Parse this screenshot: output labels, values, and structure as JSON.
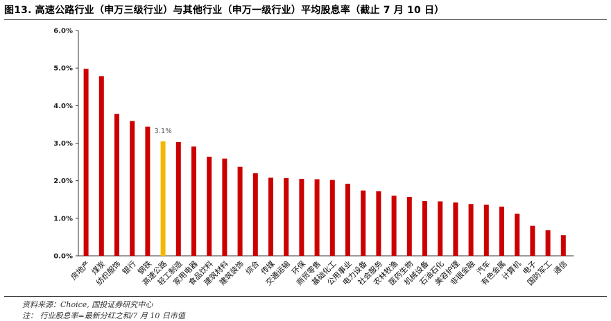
{
  "title": "图13. 高速公路行业（申万三级行业）与其他行业（申万一级行业）平均股息率（截止 7 月 10 日）",
  "source": "资料来源：Choice, 国投证券研究中心",
  "footnote": "注： 行业股息率=最新分红之和/7 月 10 日市值",
  "colors": {
    "bar": "#cc0000",
    "highlight": "#f2b705",
    "axis": "#333333",
    "label": "#595959"
  },
  "chart_data": {
    "type": "bar",
    "categories": [
      "房地产",
      "煤炭",
      "纺织服饰",
      "银行",
      "钢铁",
      "高速公路",
      "轻工制造",
      "家用电器",
      "食品饮料",
      "建筑材料",
      "建筑装饰",
      "综合",
      "传媒",
      "交通运输",
      "环保",
      "商贸零售",
      "基础化工",
      "公用事业",
      "电力设备",
      "社会服务",
      "农林牧渔",
      "医药生物",
      "机械设备",
      "石油石化",
      "美容护理",
      "非银金融",
      "汽车",
      "有色金属",
      "计算机",
      "电子",
      "国防军工",
      "通信"
    ],
    "values": [
      4.98,
      4.78,
      3.78,
      3.59,
      3.44,
      3.05,
      3.03,
      2.91,
      2.64,
      2.59,
      2.37,
      2.2,
      2.08,
      2.07,
      2.05,
      2.04,
      2.02,
      1.92,
      1.74,
      1.72,
      1.6,
      1.57,
      1.46,
      1.45,
      1.42,
      1.38,
      1.36,
      1.31,
      1.12,
      0.8,
      0.68,
      0.55
    ],
    "highlight_index": 5,
    "annotation": "3.1%",
    "ylim": [
      0,
      6
    ],
    "yticks": [
      "0.0%",
      "1.0%",
      "2.0%",
      "3.0%",
      "4.0%",
      "5.0%",
      "6.0%"
    ],
    "grid": false,
    "xlabel": "",
    "ylabel": ""
  }
}
